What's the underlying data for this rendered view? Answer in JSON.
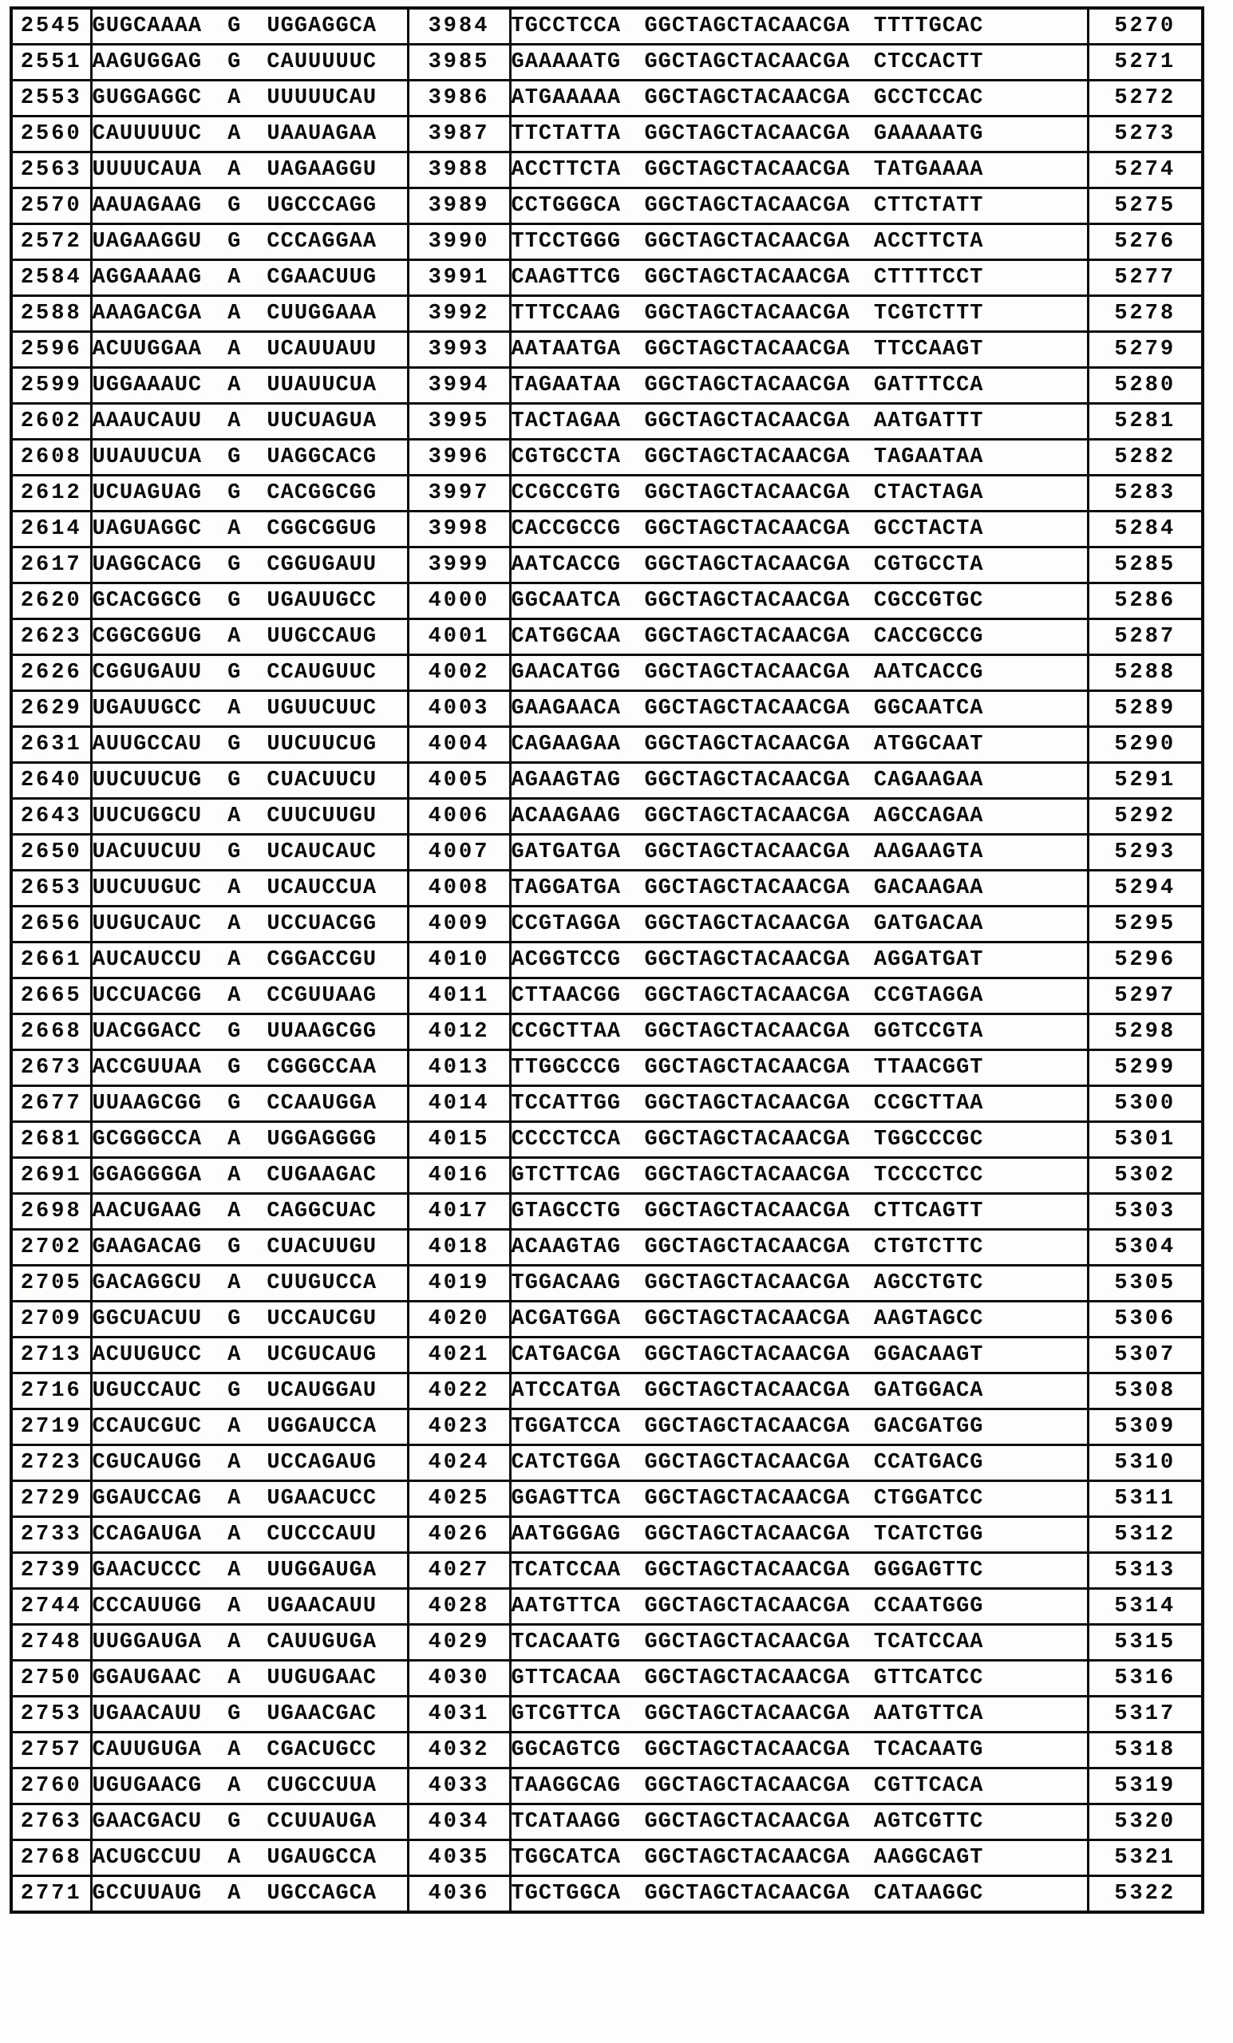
{
  "table": {
    "description_columns": [
      "target-position",
      "rna-sense-sequence",
      "seq-id-no-left",
      "dna-antisense-probe-sequence",
      "seq-id-no-right"
    ],
    "rows": [
      [
        "2545",
        "GUGCAAAA G UGGAGGCA",
        "3984",
        "TGCCTCCA GGCTAGCTACAACGA TTTTGCAC",
        "5270"
      ],
      [
        "2551",
        "AAGUGGAG G CAUUUUUC",
        "3985",
        "GAAAAATG GGCTAGCTACAACGA CTCCACTT",
        "5271"
      ],
      [
        "2553",
        "GUGGAGGC A UUUUUCAU",
        "3986",
        "ATGAAAAA GGCTAGCTACAACGA GCCTCCAC",
        "5272"
      ],
      [
        "2560",
        "CAUUUUUC A UAAUAGAA",
        "3987",
        "TTCTATTA GGCTAGCTACAACGA GAAAAATG",
        "5273"
      ],
      [
        "2563",
        "UUUUCAUA A UAGAAGGU",
        "3988",
        "ACCTTCTA GGCTAGCTACAACGA TATGAAAA",
        "5274"
      ],
      [
        "2570",
        "AAUAGAAG G UGCCCAGG",
        "3989",
        "CCTGGGCA GGCTAGCTACAACGA CTTCTATT",
        "5275"
      ],
      [
        "2572",
        "UAGAAGGU G CCCAGGAA",
        "3990",
        "TTCCTGGG GGCTAGCTACAACGA ACCTTCTA",
        "5276"
      ],
      [
        "2584",
        "AGGAAAAG A CGAACUUG",
        "3991",
        "CAAGTTCG GGCTAGCTACAACGA CTTTTCCT",
        "5277"
      ],
      [
        "2588",
        "AAAGACGA A CUUGGAAA",
        "3992",
        "TTTCCAAG GGCTAGCTACAACGA TCGTCTTT",
        "5278"
      ],
      [
        "2596",
        "ACUUGGAA A UCAUUAUU",
        "3993",
        "AATAATGA GGCTAGCTACAACGA TTCCAAGT",
        "5279"
      ],
      [
        "2599",
        "UGGAAAUC A UUAUUCUA",
        "3994",
        "TAGAATAA GGCTAGCTACAACGA GATTTCCA",
        "5280"
      ],
      [
        "2602",
        "AAAUCAUU A UUCUAGUA",
        "3995",
        "TACTAGAA GGCTAGCTACAACGA AATGATTT",
        "5281"
      ],
      [
        "2608",
        "UUAUUCUA G UAGGCACG",
        "3996",
        "CGTGCCTA GGCTAGCTACAACGA TAGAATAA",
        "5282"
      ],
      [
        "2612",
        "UCUAGUAG G CACGGCGG",
        "3997",
        "CCGCCGTG GGCTAGCTACAACGA CTACTAGA",
        "5283"
      ],
      [
        "2614",
        "UAGUAGGC A CGGCGGUG",
        "3998",
        "CACCGCCG GGCTAGCTACAACGA GCCTACTA",
        "5284"
      ],
      [
        "2617",
        "UAGGCACG G CGGUGAUU",
        "3999",
        "AATCACCG GGCTAGCTACAACGA CGTGCCTA",
        "5285"
      ],
      [
        "2620",
        "GCACGGCG G UGAUUGCC",
        "4000",
        "GGCAATCA GGCTAGCTACAACGA CGCCGTGC",
        "5286"
      ],
      [
        "2623",
        "CGGCGGUG A UUGCCAUG",
        "4001",
        "CATGGCAA GGCTAGCTACAACGA CACCGCCG",
        "5287"
      ],
      [
        "2626",
        "CGGUGAUU G CCAUGUUC",
        "4002",
        "GAACATGG GGCTAGCTACAACGA AATCACCG",
        "5288"
      ],
      [
        "2629",
        "UGAUUGCC A UGUUCUUC",
        "4003",
        "GAAGAACA GGCTAGCTACAACGA GGCAATCA",
        "5289"
      ],
      [
        "2631",
        "AUUGCCAU G UUCUUCUG",
        "4004",
        "CAGAAGAA GGCTAGCTACAACGA ATGGCAAT",
        "5290"
      ],
      [
        "2640",
        "UUCUUCUG G CUACUUCU",
        "4005",
        "AGAAGTAG GGCTAGCTACAACGA CAGAAGAA",
        "5291"
      ],
      [
        "2643",
        "UUCUGGCU A CUUCUUGU",
        "4006",
        "ACAAGAAG GGCTAGCTACAACGA AGCCAGAA",
        "5292"
      ],
      [
        "2650",
        "UACUUCUU G UCAUCAUC",
        "4007",
        "GATGATGA GGCTAGCTACAACGA AAGAAGTA",
        "5293"
      ],
      [
        "2653",
        "UUCUUGUC A UCAUCCUA",
        "4008",
        "TAGGATGA GGCTAGCTACAACGA GACAAGAA",
        "5294"
      ],
      [
        "2656",
        "UUGUCAUC A UCCUACGG",
        "4009",
        "CCGTAGGA GGCTAGCTACAACGA GATGACAA",
        "5295"
      ],
      [
        "2661",
        "AUCAUCCU A CGGACCGU",
        "4010",
        "ACGGTCCG GGCTAGCTACAACGA AGGATGAT",
        "5296"
      ],
      [
        "2665",
        "UCCUACGG A CCGUUAAG",
        "4011",
        "CTTAACGG GGCTAGCTACAACGA CCGTAGGA",
        "5297"
      ],
      [
        "2668",
        "UACGGACC G UUAAGCGG",
        "4012",
        "CCGCTTAA GGCTAGCTACAACGA GGTCCGTA",
        "5298"
      ],
      [
        "2673",
        "ACCGUUAA G CGGGCCAA",
        "4013",
        "TTGGCCCG GGCTAGCTACAACGA TTAACGGT",
        "5299"
      ],
      [
        "2677",
        "UUAAGCGG G CCAAUGGA",
        "4014",
        "TCCATTGG GGCTAGCTACAACGA CCGCTTAA",
        "5300"
      ],
      [
        "2681",
        "GCGGGCCA A UGGAGGGG",
        "4015",
        "CCCCTCCA GGCTAGCTACAACGA TGGCCCGC",
        "5301"
      ],
      [
        "2691",
        "GGAGGGGA A CUGAAGAC",
        "4016",
        "GTCTTCAG GGCTAGCTACAACGA TCCCCTCC",
        "5302"
      ],
      [
        "2698",
        "AACUGAAG A CAGGCUAC",
        "4017",
        "GTAGCCTG GGCTAGCTACAACGA CTTCAGTT",
        "5303"
      ],
      [
        "2702",
        "GAAGACAG G CUACUUGU",
        "4018",
        "ACAAGTAG GGCTAGCTACAACGA CTGTCTTC",
        "5304"
      ],
      [
        "2705",
        "GACAGGCU A CUUGUCCA",
        "4019",
        "TGGACAAG GGCTAGCTACAACGA AGCCTGTC",
        "5305"
      ],
      [
        "2709",
        "GGCUACUU G UCCAUCGU",
        "4020",
        "ACGATGGA GGCTAGCTACAACGA AAGTAGCC",
        "5306"
      ],
      [
        "2713",
        "ACUUGUCC A UCGUCAUG",
        "4021",
        "CATGACGA GGCTAGCTACAACGA GGACAAGT",
        "5307"
      ],
      [
        "2716",
        "UGUCCAUC G UCAUGGAU",
        "4022",
        "ATCCATGA GGCTAGCTACAACGA GATGGACA",
        "5308"
      ],
      [
        "2719",
        "CCAUCGUC A UGGAUCCA",
        "4023",
        "TGGATCCA GGCTAGCTACAACGA GACGATGG",
        "5309"
      ],
      [
        "2723",
        "CGUCAUGG A UCCAGAUG",
        "4024",
        "CATCTGGA GGCTAGCTACAACGA CCATGACG",
        "5310"
      ],
      [
        "2729",
        "GGAUCCAG A UGAACUCC",
        "4025",
        "GGAGTTCA GGCTAGCTACAACGA CTGGATCC",
        "5311"
      ],
      [
        "2733",
        "CCAGAUGA A CUCCCAUU",
        "4026",
        "AATGGGAG GGCTAGCTACAACGA TCATCTGG",
        "5312"
      ],
      [
        "2739",
        "GAACUCCC A UUGGAUGA",
        "4027",
        "TCATCCAA GGCTAGCTACAACGA GGGAGTTC",
        "5313"
      ],
      [
        "2744",
        "CCCAUUGG A UGAACAUU",
        "4028",
        "AATGTTCA GGCTAGCTACAACGA CCAATGGG",
        "5314"
      ],
      [
        "2748",
        "UUGGAUGA A CAUUGUGA",
        "4029",
        "TCACAATG GGCTAGCTACAACGA TCATCCAA",
        "5315"
      ],
      [
        "2750",
        "GGAUGAAC A UUGUGAAC",
        "4030",
        "GTTCACAA GGCTAGCTACAACGA GTTCATCC",
        "5316"
      ],
      [
        "2753",
        "UGAACAUU G UGAACGAC",
        "4031",
        "GTCGTTCA GGCTAGCTACAACGA AATGTTCA",
        "5317"
      ],
      [
        "2757",
        "CAUUGUGA A CGACUGCC",
        "4032",
        "GGCAGTCG GGCTAGCTACAACGA TCACAATG",
        "5318"
      ],
      [
        "2760",
        "UGUGAACG A CUGCCUUA",
        "4033",
        "TAAGGCAG GGCTAGCTACAACGA CGTTCACA",
        "5319"
      ],
      [
        "2763",
        "GAACGACU G CCUUAUGA",
        "4034",
        "TCATAAGG GGCTAGCTACAACGA AGTCGTTC",
        "5320"
      ],
      [
        "2768",
        "ACUGCCUU A UGAUGCCA",
        "4035",
        "TGGCATCA GGCTAGCTACAACGA AAGGCAGT",
        "5321"
      ],
      [
        "2771",
        "GCCUUAUG A UGCCAGCA",
        "4036",
        "TGCTGGCA GGCTAGCTACAACGA CATAAGGC",
        "5322"
      ]
    ]
  }
}
